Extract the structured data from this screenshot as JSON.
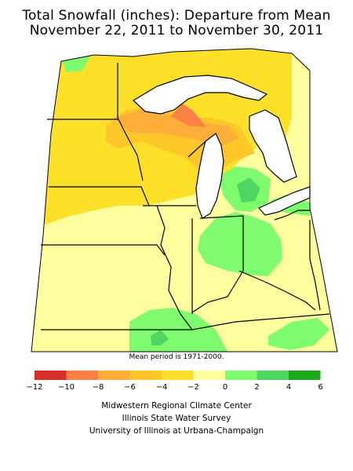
{
  "title_line1": "Total Snowfall (inches): Departure from Mean",
  "title_line2": "November 22, 2011 to November 30, 2011",
  "mean_period_note": "Mean period is 1971-2000.",
  "legend": {
    "bins": [
      {
        "from": -12,
        "to": -10,
        "color": "#d7302a"
      },
      {
        "from": -10,
        "to": -8,
        "color": "#fc7f43"
      },
      {
        "from": -8,
        "to": -6,
        "color": "#fdae39"
      },
      {
        "from": -6,
        "to": -4,
        "color": "#fdc72a"
      },
      {
        "from": -4,
        "to": -2,
        "color": "#ffe028"
      },
      {
        "from": -2,
        "to": 0,
        "color": "#ffff9f"
      },
      {
        "from": 0,
        "to": 2,
        "color": "#7ffb6e"
      },
      {
        "from": 2,
        "to": 4,
        "color": "#4fd561"
      },
      {
        "from": 4,
        "to": 6,
        "color": "#1ea91e"
      }
    ],
    "tick_labels": [
      "−12",
      "−10",
      "−8",
      "−6",
      "−4",
      "−2",
      "0",
      "2",
      "4",
      "6"
    ]
  },
  "credits": {
    "line1": "Midwestern Regional Climate Center",
    "line2": "Illinois State Water Survey",
    "line3": "University of Illinois at Urbana-Champaign"
  }
}
